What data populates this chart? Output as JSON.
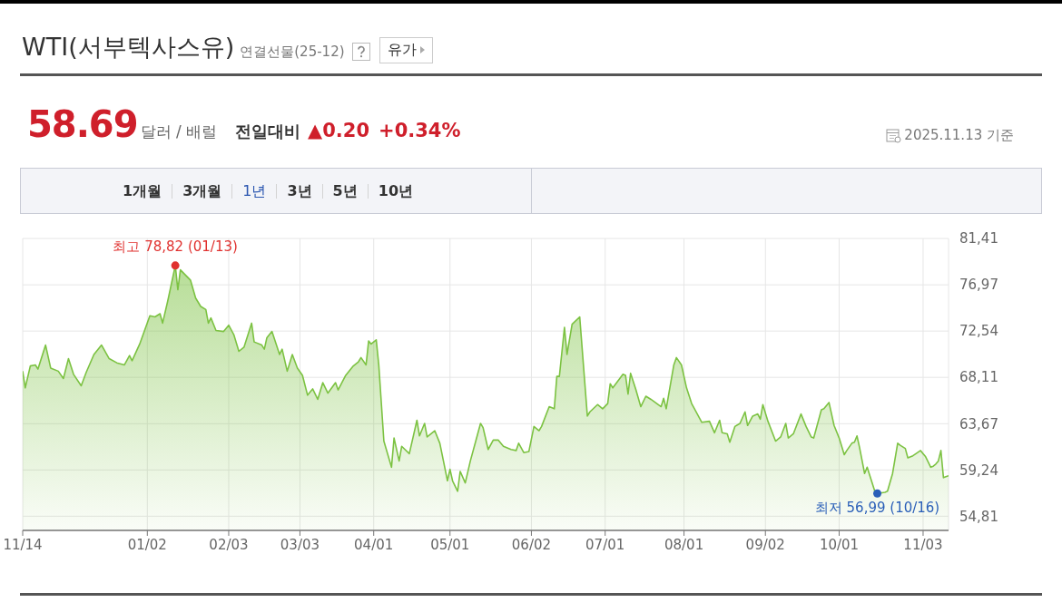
{
  "chart_data": {
    "type": "area",
    "title": "WTI(서부텍사스유)",
    "subtitle": "연결선물(25-12)",
    "annotations": [
      "유가",
      "58.69",
      "달러 / 배럴",
      "전일대비",
      "▲0.20",
      "+0.34%",
      "2025.11.13 기준",
      "1개월",
      "3개월",
      "1년",
      "3년",
      "5년",
      "10년",
      {
        "text": "최고 78,82 (01/13)",
        "x": "2025-01-13",
        "y": 78.82
      },
      {
        "text": "최저 56,99 (10/16)",
        "x": "2025-10-16",
        "y": 56.99
      }
    ],
    "x": [
      "2024-11-14",
      "2024-11-15",
      "2024-11-17",
      "2024-11-19",
      "2024-11-20",
      "2024-11-23",
      "2024-11-25",
      "2024-11-28",
      "2024-11-30",
      "2024-12-02",
      "2024-12-04",
      "2024-12-07",
      "2024-12-09",
      "2024-12-12",
      "2024-12-15",
      "2024-12-18",
      "2024-12-21",
      "2024-12-24",
      "2024-12-26",
      "2024-12-27",
      "2024-12-30",
      "2025-01-03",
      "2025-01-05",
      "2025-01-07",
      "2025-01-08",
      "2025-01-10",
      "2025-01-13",
      "2025-01-14",
      "2025-01-15",
      "2025-01-19",
      "2025-01-21",
      "2025-01-23",
      "2025-01-25",
      "2025-01-26",
      "2025-01-27",
      "2025-01-29",
      "2025-02-01",
      "2025-02-03",
      "2025-02-05",
      "2025-02-07",
      "2025-02-09",
      "2025-02-12",
      "2025-02-13",
      "2025-02-16",
      "2025-02-17",
      "2025-02-18",
      "2025-02-20",
      "2025-02-23",
      "2025-02-24",
      "2025-02-26",
      "2025-02-28",
      "2025-03-02",
      "2025-03-04",
      "2025-03-06",
      "2025-03-08",
      "2025-03-10",
      "2025-03-12",
      "2025-03-14",
      "2025-03-17",
      "2025-03-18",
      "2025-03-21",
      "2025-03-24",
      "2025-03-26",
      "2025-03-27",
      "2025-03-29",
      "2025-03-30",
      "2025-03-31",
      "2025-04-02",
      "2025-04-03",
      "2025-04-05",
      "2025-04-08",
      "2025-04-09",
      "2025-04-11",
      "2025-04-12",
      "2025-04-15",
      "2025-04-18",
      "2025-04-19",
      "2025-04-21",
      "2025-04-22",
      "2025-04-25",
      "2025-04-27",
      "2025-04-30",
      "2025-05-01",
      "2025-05-02",
      "2025-05-04",
      "2025-05-05",
      "2025-05-07",
      "2025-05-09",
      "2025-05-11",
      "2025-05-13",
      "2025-05-14",
      "2025-05-16",
      "2025-05-18",
      "2025-05-20",
      "2025-05-22",
      "2025-05-25",
      "2025-05-27",
      "2025-05-28",
      "2025-05-30",
      "2025-06-01",
      "2025-06-03",
      "2025-06-05",
      "2025-06-06",
      "2025-06-09",
      "2025-06-11",
      "2025-06-12",
      "2025-06-13",
      "2025-06-15",
      "2025-06-16",
      "2025-06-18",
      "2025-06-21",
      "2025-06-24",
      "2025-06-25",
      "2025-06-28",
      "2025-06-30",
      "2025-07-02",
      "2025-07-03",
      "2025-07-04",
      "2025-07-08",
      "2025-07-09",
      "2025-07-10",
      "2025-07-11",
      "2025-07-13",
      "2025-07-15",
      "2025-07-17",
      "2025-07-19",
      "2025-07-23",
      "2025-07-24",
      "2025-07-25",
      "2025-07-28",
      "2025-07-29",
      "2025-07-31",
      "2025-08-02",
      "2025-08-04",
      "2025-08-08",
      "2025-08-11",
      "2025-08-13",
      "2025-08-15",
      "2025-08-16",
      "2025-08-18",
      "2025-08-19",
      "2025-08-21",
      "2025-08-23",
      "2025-08-25",
      "2025-08-26",
      "2025-08-28",
      "2025-08-30",
      "2025-08-31",
      "2025-09-01",
      "2025-09-03",
      "2025-09-06",
      "2025-09-08",
      "2025-09-10",
      "2025-09-11",
      "2025-09-13",
      "2025-09-16",
      "2025-09-18",
      "2025-09-20",
      "2025-09-21",
      "2025-09-24",
      "2025-09-25",
      "2025-09-27",
      "2025-09-29",
      "2025-10-01",
      "2025-10-03",
      "2025-10-04",
      "2025-10-06",
      "2025-10-07",
      "2025-10-08",
      "2025-10-09",
      "2025-10-11",
      "2025-10-12",
      "2025-10-15",
      "2025-10-16",
      "2025-10-19",
      "2025-10-20",
      "2025-10-22",
      "2025-10-24",
      "2025-10-25",
      "2025-10-27",
      "2025-10-28",
      "2025-10-30",
      "2025-11-02",
      "2025-11-04",
      "2025-11-06",
      "2025-11-07",
      "2025-11-08",
      "2025-11-09",
      "2025-11-10",
      "2025-11-11",
      "2025-11-13"
    ],
    "series": [
      {
        "color": "#7cc242",
        "values": [
          68.7,
          67.1,
          69.2,
          69.3,
          68.9,
          71.2,
          69.0,
          68.7,
          68.0,
          69.9,
          68.4,
          67.3,
          68.6,
          70.3,
          71.2,
          69.9,
          69.5,
          69.3,
          70.2,
          69.7,
          71.3,
          74.0,
          73.9,
          74.2,
          73.3,
          75.4,
          78.82,
          76.5,
          78.4,
          77.4,
          75.7,
          74.9,
          74.6,
          73.3,
          73.8,
          72.6,
          72.5,
          73.1,
          72.2,
          70.6,
          71.0,
          73.3,
          71.5,
          71.2,
          70.8,
          71.9,
          72.5,
          70.3,
          70.8,
          68.7,
          70.3,
          69.0,
          68.3,
          66.4,
          67.0,
          66.0,
          67.6,
          66.6,
          67.6,
          66.9,
          68.3,
          69.2,
          69.6,
          70.0,
          69.3,
          71.6,
          71.3,
          71.7,
          69.3,
          62.0,
          59.5,
          62.3,
          60.1,
          61.5,
          60.8,
          64.0,
          62.5,
          63.7,
          62.4,
          63.0,
          61.8,
          58.2,
          59.3,
          58.2,
          57.2,
          59.1,
          58.0,
          60.1,
          61.9,
          63.7,
          63.3,
          61.2,
          62.1,
          62.1,
          61.5,
          61.2,
          61.1,
          61.8,
          60.9,
          61.0,
          63.4,
          63.0,
          63.4,
          65.3,
          65.1,
          68.2,
          68.2,
          72.9,
          70.3,
          73.2,
          73.9,
          64.4,
          64.8,
          65.5,
          65.1,
          65.6,
          67.5,
          67.1,
          68.4,
          68.3,
          66.5,
          68.5,
          67.0,
          65.3,
          66.3,
          66.0,
          65.3,
          66.1,
          65.1,
          69.3,
          70.0,
          69.3,
          67.1,
          65.6,
          63.8,
          63.9,
          62.8,
          64.0,
          62.8,
          62.7,
          61.9,
          63.4,
          63.7,
          64.8,
          63.5,
          64.4,
          64.6,
          64.1,
          65.5,
          63.9,
          62.0,
          62.4,
          63.7,
          62.3,
          62.7,
          64.6,
          63.4,
          62.4,
          62.3,
          65.0,
          65.1,
          65.7,
          63.5,
          62.3,
          60.7,
          61.1,
          61.8,
          61.9,
          62.5,
          61.4,
          58.9,
          59.5,
          57.2,
          56.99,
          57.1,
          57.2,
          58.9,
          61.8,
          61.6,
          61.3,
          60.4,
          60.6,
          61.1,
          60.5,
          59.5,
          59.6,
          59.8,
          60.1,
          61.1,
          58.5,
          58.69
        ]
      },
      {
        "type": "scatter",
        "color": "#e0312f",
        "x": [
          "2025-01-13"
        ],
        "values": [
          78.82
        ]
      },
      {
        "type": "scatter",
        "color": "#2a5fb8",
        "x": [
          "2025-10-16"
        ],
        "values": [
          56.99
        ]
      }
    ],
    "xlim": [
      "2024-11-14",
      "2025-11-13"
    ],
    "xticks": [
      {
        "value": "2024-11-14",
        "label": "11/14"
      },
      {
        "value": "2025-01-02",
        "label": "01/02"
      },
      {
        "value": "2025-02-03",
        "label": "02/03"
      },
      {
        "value": "2025-03-03",
        "label": "03/03"
      },
      {
        "value": "2025-04-01",
        "label": "04/01"
      },
      {
        "value": "2025-05-01",
        "label": "05/01"
      },
      {
        "value": "2025-06-02",
        "label": "06/02"
      },
      {
        "value": "2025-07-01",
        "label": "07/01"
      },
      {
        "value": "2025-08-01",
        "label": "08/01"
      },
      {
        "value": "2025-09-02",
        "label": "09/02"
      },
      {
        "value": "2025-10-01",
        "label": "10/01"
      },
      {
        "value": "2025-11-03",
        "label": "11/03"
      }
    ],
    "ylim": [
      53.45,
      81.41
    ],
    "yticks": [
      {
        "value": 54.81,
        "label": "54,81"
      },
      {
        "value": 59.24,
        "label": "59,24"
      },
      {
        "value": 63.67,
        "label": "63,67"
      },
      {
        "value": 68.11,
        "label": "68,11"
      },
      {
        "value": 72.54,
        "label": "72,54"
      },
      {
        "value": 76.97,
        "label": "76,97"
      },
      {
        "value": 81.41,
        "label": "81,41"
      }
    ],
    "grid": true
  }
}
